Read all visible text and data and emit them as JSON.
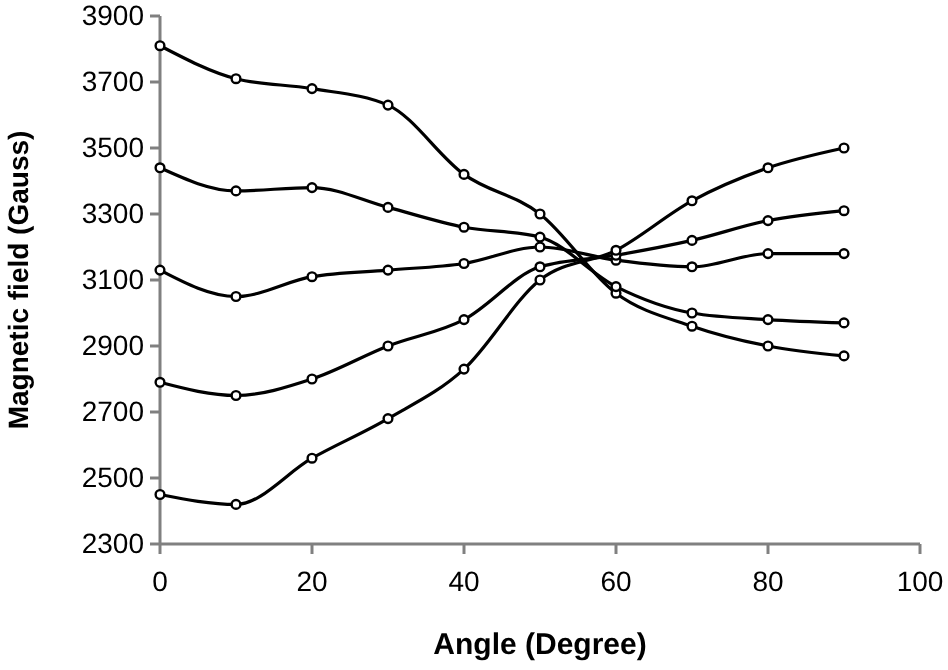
{
  "chart_data": {
    "type": "line",
    "xlabel": "Angle (Degree)",
    "ylabel": "Magnetic field (Gauss)",
    "x": [
      0,
      10,
      20,
      30,
      40,
      50,
      60,
      70,
      80,
      90
    ],
    "xlim": [
      0,
      100
    ],
    "xticks": [
      0,
      20,
      40,
      60,
      80,
      100
    ],
    "ylim": [
      2300,
      3900
    ],
    "yticks": [
      2300,
      2500,
      2700,
      2900,
      3100,
      3300,
      3500,
      3700,
      3900
    ],
    "marker": "circle",
    "grid": false,
    "series": [
      {
        "color": "#000000",
        "values": [
          3810,
          3710,
          3680,
          3630,
          3420,
          3300,
          3060,
          2960,
          2900,
          2870
        ]
      },
      {
        "color": "#000000",
        "values": [
          3440,
          3370,
          3380,
          3320,
          3260,
          3230,
          3080,
          3000,
          2980,
          2970
        ]
      },
      {
        "color": "#000000",
        "values": [
          3130,
          3050,
          3110,
          3130,
          3150,
          3200,
          3160,
          3140,
          3180,
          3180
        ]
      },
      {
        "color": "#000000",
        "values": [
          2790,
          2750,
          2800,
          2900,
          2980,
          3140,
          3175,
          3220,
          3280,
          3310
        ]
      },
      {
        "color": "#000000",
        "values": [
          2450,
          2420,
          2560,
          2680,
          2830,
          3100,
          3190,
          3340,
          3440,
          3500
        ]
      }
    ]
  }
}
